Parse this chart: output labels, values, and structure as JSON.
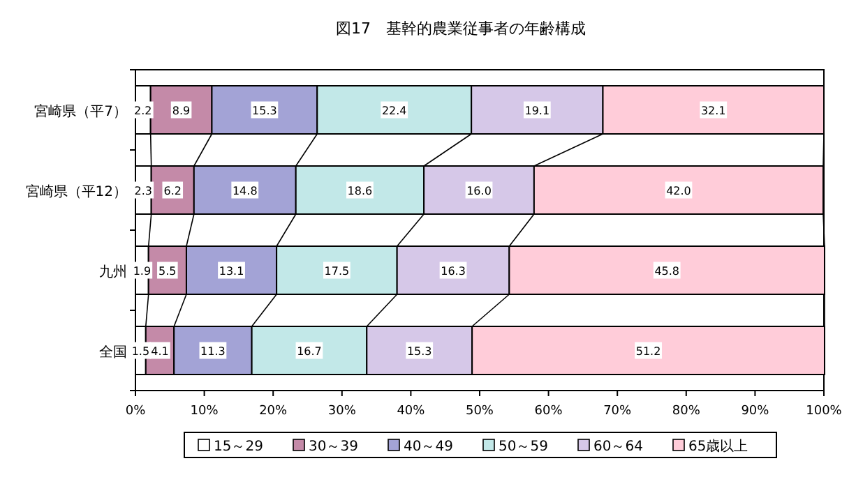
{
  "chart_data": {
    "type": "bar",
    "orientation": "horizontal",
    "stacked": true,
    "title": "図17　基幹的農業従事者の年齢構成",
    "categories": [
      "宮崎県（平7）",
      "宮崎県（平12）",
      "九州",
      "全国"
    ],
    "series": [
      {
        "name": "15～29",
        "color": "#ffffff",
        "values": [
          2.2,
          2.3,
          1.9,
          1.5
        ],
        "value_labels": [
          "2.2",
          "2.3",
          "1.9",
          "1.5"
        ]
      },
      {
        "name": "30～39",
        "color": "#c48aa8",
        "values": [
          8.9,
          6.2,
          5.5,
          4.1
        ],
        "value_labels": [
          "8.9",
          "6.2",
          "5.5",
          "4.1"
        ]
      },
      {
        "name": "40～49",
        "color": "#a3a3d6",
        "values": [
          15.3,
          14.8,
          13.1,
          11.3
        ],
        "value_labels": [
          "15.3",
          "14.8",
          "13.1",
          "11.3"
        ]
      },
      {
        "name": "50～59",
        "color": "#c2e8e8",
        "values": [
          22.4,
          18.6,
          17.5,
          16.7
        ],
        "value_labels": [
          "22.4",
          "18.6",
          "17.5",
          "16.7"
        ]
      },
      {
        "name": "60～64",
        "color": "#d6c8e8",
        "values": [
          19.1,
          16.0,
          16.3,
          15.3
        ],
        "value_labels": [
          "19.1",
          "16.0",
          "16.3",
          "15.3"
        ]
      },
      {
        "name": "65歳以上",
        "color": "#ffccd9",
        "values": [
          32.1,
          42.0,
          45.8,
          51.2
        ],
        "value_labels": [
          "32.1",
          "42.0",
          "45.8",
          "51.2"
        ]
      }
    ],
    "xlim": [
      0,
      100
    ],
    "xticks": [
      {
        "value": 0,
        "label": "0%"
      },
      {
        "value": 10,
        "label": "10%"
      },
      {
        "value": 20,
        "label": "20%"
      },
      {
        "value": 30,
        "label": "30%"
      },
      {
        "value": 40,
        "label": "40%"
      },
      {
        "value": 50,
        "label": "50%"
      },
      {
        "value": 60,
        "label": "60%"
      },
      {
        "value": 70,
        "label": "70%"
      },
      {
        "value": 80,
        "label": "80%"
      },
      {
        "value": 90,
        "label": "90%"
      },
      {
        "value": 100,
        "label": "100%"
      }
    ],
    "legend": "bottom"
  }
}
